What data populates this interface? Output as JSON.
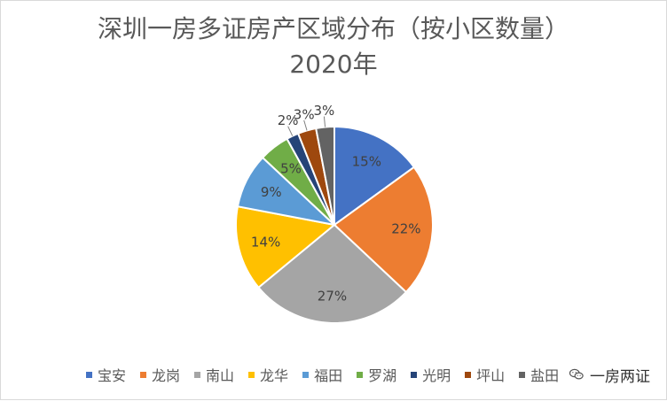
{
  "chart_data": {
    "type": "pie",
    "title": "深圳一房多证房产区域分布（按小区数量）",
    "subtitle": "2020年",
    "categories": [
      "宝安",
      "龙岗",
      "南山",
      "龙华",
      "福田",
      "罗湖",
      "光明",
      "坪山",
      "盐田"
    ],
    "values": [
      15,
      22,
      27,
      14,
      9,
      5,
      2,
      3,
      3
    ],
    "labels": [
      "15%",
      "22%",
      "27%",
      "14%",
      "9%",
      "5%",
      "2%",
      "3%",
      "3%"
    ],
    "colors": [
      "#4472c4",
      "#ed7d31",
      "#a5a5a5",
      "#ffc000",
      "#5b9bd5",
      "#70ad47",
      "#264478",
      "#9e480e",
      "#636363"
    ],
    "legend_position": "bottom",
    "start_angle": "12 o'clock",
    "direction": "clockwise"
  },
  "watermark": {
    "text": "一房两证",
    "icon": "wechat-icon"
  }
}
